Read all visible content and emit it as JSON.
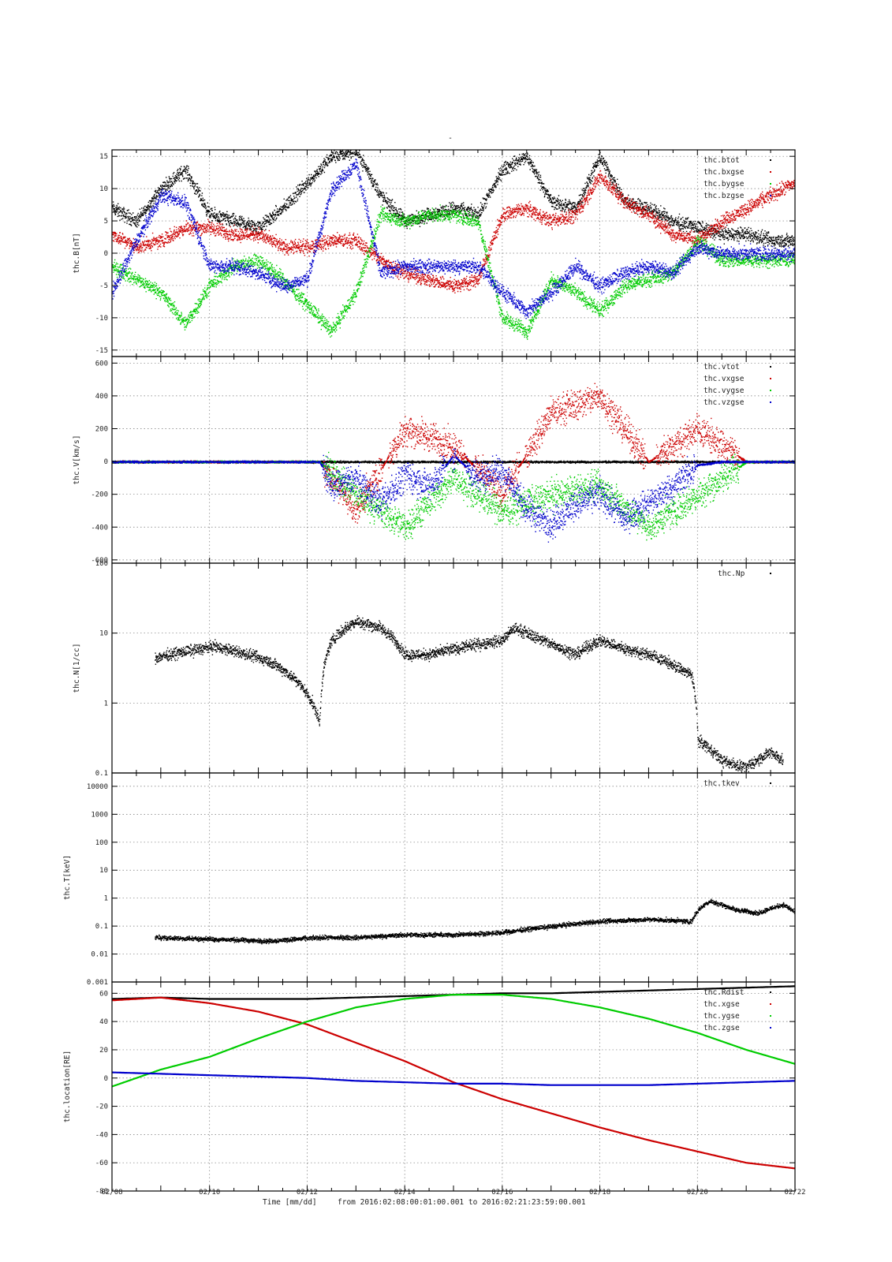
{
  "page_title": "-",
  "footer": {
    "xlabel": "Time [mm/dd]",
    "range_text": "from 2016:02:08:00:01:00.001  to  2016:02:21:23:59:00.001"
  },
  "colors": {
    "black": "#000000",
    "red": "#cc0000",
    "green": "#00cc00",
    "blue": "#0000cc"
  },
  "chart_data": [
    {
      "type": "scatter",
      "ylabel": "thc.B[nT]",
      "ylim": [
        -16,
        16
      ],
      "yscale": "linear",
      "yticks": [
        15,
        10,
        5,
        0,
        -5,
        -10,
        -15
      ],
      "ytick_labels": [
        "15",
        "10",
        "5",
        "0",
        "-5",
        "-10",
        "-15"
      ],
      "grid": true,
      "legend": "top-right",
      "series": [
        {
          "name": "thc.btot",
          "color": "#000000",
          "x": [
            "02/08",
            "02/08 12h",
            "02/09",
            "02/09 12h",
            "02/10",
            "02/10 12h",
            "02/11",
            "02/11 12h",
            "02/12",
            "02/12 12h",
            "02/13",
            "02/13 12h",
            "02/14",
            "02/14 12h",
            "02/15",
            "02/15 12h",
            "02/16",
            "02/16 12h",
            "02/17",
            "02/17 12h",
            "02/18",
            "02/18 12h",
            "02/19",
            "02/19 12h",
            "02/20",
            "02/20 12h",
            "02/21",
            "02/21 12h",
            "02/22"
          ],
          "y": [
            7,
            5,
            10,
            13,
            6,
            5,
            4,
            7,
            11,
            15,
            16,
            9,
            5,
            6,
            7,
            6,
            13,
            15,
            8,
            7,
            15,
            8,
            7,
            5,
            4,
            3,
            3,
            2,
            2
          ]
        },
        {
          "name": "thc.bxgse",
          "color": "#cc0000",
          "x": [
            "02/08",
            "02/08 12h",
            "02/09",
            "02/09 12h",
            "02/10",
            "02/10 12h",
            "02/11",
            "02/11 12h",
            "02/12",
            "02/12 12h",
            "02/13",
            "02/13 12h",
            "02/14",
            "02/14 12h",
            "02/15",
            "02/15 12h",
            "02/16",
            "02/16 12h",
            "02/17",
            "02/17 12h",
            "02/18",
            "02/18 12h",
            "02/19",
            "02/19 12h",
            "02/20",
            "02/20 12h",
            "02/21",
            "02/21 12h",
            "02/22"
          ],
          "y": [
            3,
            1,
            2,
            4,
            4,
            3,
            3,
            1,
            1,
            2,
            2,
            -1,
            -3,
            -4,
            -5,
            -4,
            6,
            7,
            5,
            6,
            12,
            8,
            6,
            3,
            2,
            5,
            7,
            9,
            11
          ]
        },
        {
          "name": "thc.bygse",
          "color": "#00cc00",
          "x": [
            "02/08",
            "02/08 12h",
            "02/09",
            "02/09 12h",
            "02/10",
            "02/10 12h",
            "02/11",
            "02/11 12h",
            "02/12",
            "02/12 12h",
            "02/13",
            "02/13 12h",
            "02/14",
            "02/14 12h",
            "02/15",
            "02/15 12h",
            "02/16",
            "02/16 12h",
            "02/17",
            "02/17 12h",
            "02/18",
            "02/18 12h",
            "02/19",
            "02/19 12h",
            "02/20",
            "02/20 12h",
            "02/21",
            "02/21 12h",
            "02/22"
          ],
          "y": [
            -2,
            -4,
            -6,
            -11,
            -5,
            -2,
            -1,
            -4,
            -8,
            -12,
            -6,
            6,
            5,
            6,
            6,
            5,
            -10,
            -12,
            -4,
            -6,
            -9,
            -5,
            -4,
            -3,
            2,
            -1,
            -1,
            -1,
            -1
          ]
        },
        {
          "name": "thc.bzgse",
          "color": "#0000cc",
          "x": [
            "02/08",
            "02/08 12h",
            "02/09",
            "02/09 12h",
            "02/10",
            "02/10 12h",
            "02/11",
            "02/11 12h",
            "02/12",
            "02/12 12h",
            "02/13",
            "02/13 12h",
            "02/14",
            "02/14 12h",
            "02/15",
            "02/15 12h",
            "02/16",
            "02/16 12h",
            "02/17",
            "02/17 12h",
            "02/18",
            "02/18 12h",
            "02/19",
            "02/19 12h",
            "02/20",
            "02/20 12h",
            "02/21",
            "02/21 12h",
            "02/22"
          ],
          "y": [
            -6,
            2,
            9,
            8,
            -2,
            -2,
            -3,
            -5,
            -4,
            10,
            14,
            -3,
            -2,
            -2,
            -2,
            -2,
            -6,
            -9,
            -6,
            -2,
            -5,
            -3,
            -2,
            -3,
            1,
            0,
            0,
            0,
            0
          ]
        }
      ]
    },
    {
      "type": "scatter",
      "ylabel": "thc.V[km/s]",
      "ylim": [
        -620,
        640
      ],
      "yscale": "linear",
      "yticks": [
        600,
        400,
        200,
        0,
        -200,
        -400,
        -600
      ],
      "ytick_labels": [
        "600",
        "400",
        "200",
        "0",
        "-200",
        "-400",
        "-600"
      ],
      "grid": true,
      "legend": "top-right",
      "series": [
        {
          "name": "thc.vtot",
          "color": "#000000",
          "x": [
            "02/08",
            "02/12 06h",
            "02/20",
            "02/20 01h",
            "02/22"
          ],
          "y": [
            0,
            0,
            0,
            0,
            0
          ]
        },
        {
          "name": "thc.vxgse",
          "color": "#cc0000",
          "x": [
            "02/08",
            "02/12 06h",
            "02/13",
            "02/14",
            "02/15",
            "02/16",
            "02/17",
            "02/18",
            "02/19",
            "02/20",
            "02/21",
            "02/22"
          ],
          "y": [
            0,
            0,
            -300,
            200,
            100,
            -200,
            300,
            400,
            0,
            200,
            0,
            0
          ]
        },
        {
          "name": "thc.vygse",
          "color": "#00cc00",
          "x": [
            "02/08",
            "02/12 06h",
            "02/13",
            "02/14",
            "02/15",
            "02/16",
            "02/17",
            "02/18",
            "02/19",
            "02/20",
            "02/21",
            "02/22"
          ],
          "y": [
            0,
            0,
            -200,
            -400,
            -100,
            -300,
            -200,
            -150,
            -400,
            -200,
            0,
            0
          ]
        },
        {
          "name": "thc.vzgse",
          "color": "#0000cc",
          "x": [
            "02/08",
            "02/12 06h",
            "02/12 12h",
            "02/13",
            "02/13 12h",
            "02/14",
            "02/14 12h",
            "02/15",
            "02/15 12h",
            "02/16",
            "02/16 12h",
            "02/17",
            "02/17 12h",
            "02/18",
            "02/18 12h",
            "02/19",
            "02/19 12h",
            "02/20",
            "02/20 12h",
            "02/21",
            "02/22"
          ],
          "y": [
            0,
            0,
            -150,
            -100,
            -250,
            -80,
            -150,
            40,
            -100,
            -50,
            -300,
            -380,
            -250,
            -200,
            -350,
            -250,
            -150,
            -20,
            0,
            0,
            0
          ]
        }
      ]
    },
    {
      "type": "scatter",
      "ylabel": "thc.N[1/cc]",
      "ylim": [
        0.1,
        100
      ],
      "yscale": "log",
      "yticks": [
        100,
        10,
        1,
        0.1
      ],
      "ytick_labels": [
        "100",
        "10",
        "1",
        "0.1"
      ],
      "grid": true,
      "legend": "top-right",
      "series": [
        {
          "name": "thc.Np",
          "color": "#000000",
          "x": [
            "02/08 21h",
            "02/10 02h",
            "02/11 05h",
            "02/12 06h",
            "02/12 12h",
            "02/13",
            "02/13 12h",
            "02/14",
            "02/14 12h",
            "02/15",
            "02/15 12h",
            "02/16",
            "02/16 06h",
            "02/16 12h",
            "02/17",
            "02/17 12h",
            "02/18",
            "02/18 12h",
            "02/19",
            "02/19 12h",
            "02/19 21h",
            "02/20",
            "02/20 12h",
            "02/21",
            "02/21 12h",
            "02/21 18h"
          ],
          "y": [
            4.5,
            6.5,
            4,
            0.5,
            8,
            15,
            12,
            5,
            5,
            6,
            7,
            8,
            12,
            10,
            7,
            5,
            8,
            6,
            5,
            3.5,
            2.5,
            0.3,
            0.15,
            0.12,
            0.2,
            0.15
          ]
        }
      ]
    },
    {
      "type": "scatter",
      "ylabel": "thc.T[keV]",
      "ylim": [
        0.001,
        30000
      ],
      "yscale": "log",
      "yticks": [
        10000,
        1000,
        100,
        10,
        1,
        0.1,
        0.01,
        0.001
      ],
      "ytick_labels": [
        "10000",
        "1000",
        "100",
        "10",
        "1",
        "0.1",
        "0.01",
        "0.001"
      ],
      "grid": true,
      "legend": "top-right",
      "series": [
        {
          "name": "thc.tkev",
          "color": "#000000",
          "x": [
            "02/08 21h",
            "02/10 02h",
            "02/11 05h",
            "02/12 06h",
            "02/13",
            "02/14",
            "02/15",
            "02/16",
            "02/17",
            "02/18",
            "02/19",
            "02/19 21h",
            "02/20 06h",
            "02/20 18h",
            "02/21 06h",
            "02/21 18h",
            "02/22"
          ],
          "y": [
            0.04,
            0.035,
            0.03,
            0.04,
            0.04,
            0.05,
            0.05,
            0.06,
            0.1,
            0.15,
            0.18,
            0.15,
            0.8,
            0.4,
            0.3,
            0.6,
            0.3
          ]
        }
      ]
    },
    {
      "type": "line",
      "ylabel": "thc.location[RE]",
      "ylim": [
        -80,
        68
      ],
      "yscale": "linear",
      "yticks": [
        60,
        40,
        20,
        0,
        -20,
        -40,
        -60,
        -80
      ],
      "ytick_labels": [
        "60",
        "40",
        "20",
        "0",
        "-20",
        "-40",
        "-60",
        "-80"
      ],
      "grid": true,
      "legend": "top-right",
      "series": [
        {
          "name": "thc.Rdist",
          "color": "#000000",
          "x": [
            "02/08",
            "02/09",
            "02/10",
            "02/11",
            "02/12",
            "02/13",
            "02/14",
            "02/15",
            "02/16",
            "02/17",
            "02/18",
            "02/19",
            "02/20",
            "02/21",
            "02/22"
          ],
          "y": [
            56,
            57,
            56,
            56,
            56,
            57,
            58,
            59,
            60,
            60,
            61,
            62,
            63,
            64,
            65
          ]
        },
        {
          "name": "thc.xgse",
          "color": "#cc0000",
          "x": [
            "02/08",
            "02/09",
            "02/10",
            "02/11",
            "02/12",
            "02/13",
            "02/14",
            "02/15",
            "02/16",
            "02/17",
            "02/18",
            "02/19",
            "02/20",
            "02/21",
            "02/22"
          ],
          "y": [
            55,
            57,
            53,
            47,
            38,
            25,
            12,
            -3,
            -15,
            -25,
            -35,
            -44,
            -52,
            -60,
            -64
          ]
        },
        {
          "name": "thc.ygse",
          "color": "#00cc00",
          "x": [
            "02/08",
            "02/09",
            "02/10",
            "02/11",
            "02/12",
            "02/13",
            "02/14",
            "02/15",
            "02/16",
            "02/17",
            "02/18",
            "02/19",
            "02/20",
            "02/21",
            "02/22"
          ],
          "y": [
            -6,
            6,
            15,
            28,
            40,
            50,
            56,
            59,
            59,
            56,
            50,
            42,
            32,
            20,
            10
          ]
        },
        {
          "name": "thc.zgse",
          "color": "#0000cc",
          "x": [
            "02/08",
            "02/09",
            "02/10",
            "02/11",
            "02/12",
            "02/13",
            "02/14",
            "02/15",
            "02/16",
            "02/17",
            "02/18",
            "02/19",
            "02/20",
            "02/21",
            "02/22"
          ],
          "y": [
            4,
            3,
            2,
            1,
            0,
            -2,
            -3,
            -4,
            -4,
            -5,
            -5,
            -5,
            -4,
            -3,
            -2
          ]
        }
      ]
    }
  ],
  "x_axis": {
    "range": [
      "02/08",
      "02/22"
    ],
    "major_ticks": [
      "02/08",
      "02/10",
      "02/12",
      "02/14",
      "02/16",
      "02/18",
      "02/20",
      "02/22"
    ],
    "major_labels": [
      "02/08",
      "02/10",
      "02/12",
      "02/14",
      "02/16",
      "02/18",
      "02/20",
      "02/22"
    ]
  }
}
